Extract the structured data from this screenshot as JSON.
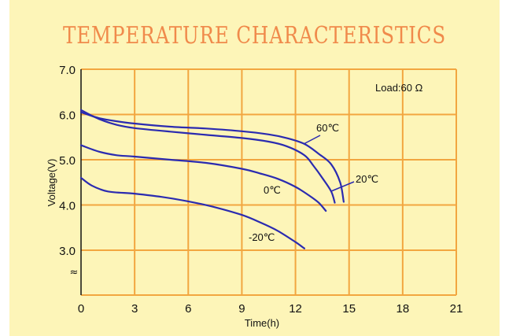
{
  "chart_data": {
    "type": "line",
    "title": "TEMPERATURE CHARACTERISTICS",
    "xlabel": "Time(h)",
    "ylabel": "Voltage(V)",
    "xlim": [
      0,
      21
    ],
    "ylim": [
      2.3,
      7.0
    ],
    "x_ticks": [
      "0",
      "3",
      "6",
      "9",
      "12",
      "15",
      "18",
      "21"
    ],
    "y_ticks": [
      "7.0",
      "6.0",
      "5.0",
      "4.0",
      "3.0"
    ],
    "axis_break_symbol": "≈",
    "annotation": "Load:60 Ω",
    "grid": true,
    "colors": {
      "series": "#2b2bb0",
      "grid": "#f2a640",
      "title": "#f08a4b",
      "background": "#fdf5b8"
    },
    "series": [
      {
        "name": "60℃",
        "x": [
          0,
          1,
          2,
          3,
          5,
          7,
          9,
          10.5,
          11.5,
          12.5,
          13.3,
          14,
          14.5,
          14.7
        ],
        "y": [
          6.05,
          5.92,
          5.85,
          5.8,
          5.73,
          5.69,
          5.63,
          5.56,
          5.48,
          5.35,
          5.13,
          4.9,
          4.5,
          4.07
        ]
      },
      {
        "name": "20℃",
        "x": [
          0,
          1,
          2,
          3,
          5,
          7,
          9,
          10.5,
          11.5,
          12.5,
          13,
          13.5,
          14,
          14.2
        ],
        "y": [
          6.1,
          5.9,
          5.77,
          5.7,
          5.62,
          5.55,
          5.48,
          5.4,
          5.3,
          5.1,
          4.87,
          4.6,
          4.3,
          4.05
        ]
      },
      {
        "name": "0℃",
        "x": [
          0,
          1,
          2,
          3,
          5,
          7,
          9,
          10,
          11,
          12,
          12.8,
          13.3,
          13.7
        ],
        "y": [
          5.32,
          5.18,
          5.1,
          5.07,
          5.0,
          4.93,
          4.8,
          4.7,
          4.58,
          4.4,
          4.2,
          4.05,
          3.87
        ]
      },
      {
        "name": "-20℃",
        "x": [
          0,
          0.6,
          1.5,
          3,
          4.5,
          6,
          7.5,
          9,
          10,
          11,
          12,
          12.5
        ],
        "y": [
          4.6,
          4.43,
          4.3,
          4.25,
          4.18,
          4.08,
          3.95,
          3.78,
          3.62,
          3.43,
          3.18,
          3.04
        ]
      }
    ]
  }
}
